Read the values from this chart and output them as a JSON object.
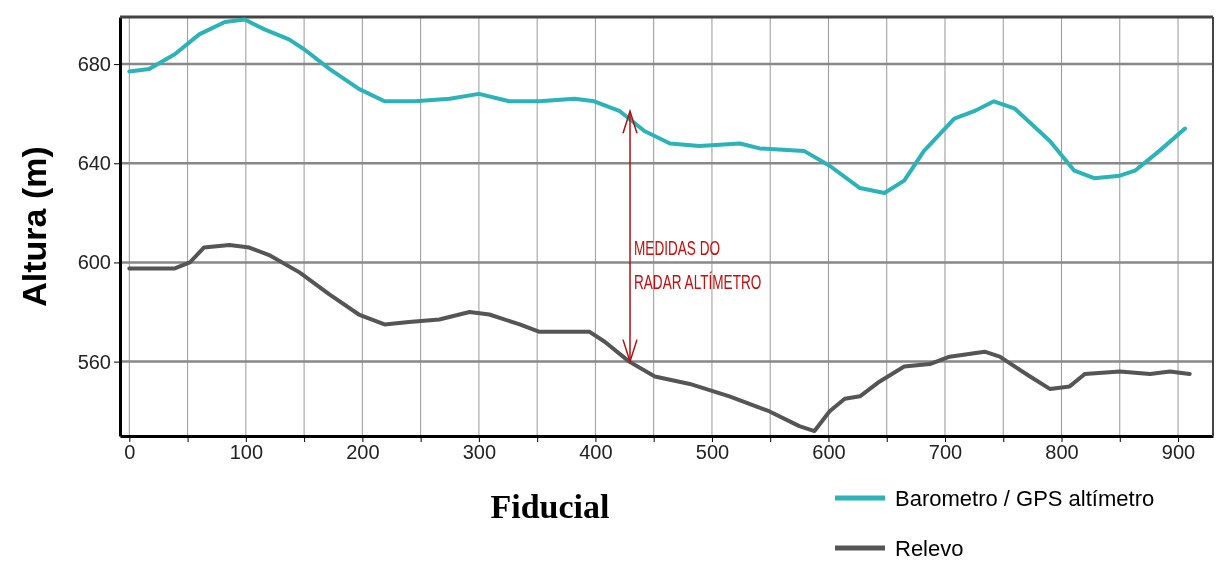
{
  "chart_data": {
    "type": "line",
    "xlabel": "Fiducial",
    "ylabel": "Altura (m)",
    "xlim": [
      -8,
      930
    ],
    "ylim": [
      530,
      699
    ],
    "xticks": [
      0,
      {
        "value": 50,
        "label": null
      },
      100,
      {
        "value": 150,
        "label": null
      },
      200,
      {
        "value": 250,
        "label": null
      },
      300,
      {
        "value": 350,
        "label": null
      },
      400,
      {
        "value": 450,
        "label": null
      },
      500,
      {
        "value": 550,
        "label": null
      },
      600,
      {
        "value": 650,
        "label": null
      },
      700,
      {
        "value": 750,
        "label": null
      },
      800,
      {
        "value": 850,
        "label": null
      },
      900
    ],
    "yticks": [
      560,
      600,
      640,
      680
    ],
    "grid": true,
    "legend": "bottom right",
    "line_style": "solid",
    "annotations": [
      "MEDIDAS DO RADAR ALTÍMETRO"
    ],
    "series": [
      {
        "name": "Barometro / GPS altímetro",
        "color": "#2bb3b8",
        "x": [
          0,
          17,
          39,
          60,
          82,
          99,
          116,
          137,
          150,
          172,
          197,
          219,
          245,
          275,
          300,
          326,
          352,
          382,
          399,
          421,
          442,
          464,
          489,
          524,
          541,
          579,
          601,
          627,
          648,
          665,
          682,
          708,
          725,
          742,
          760,
          790,
          811,
          828,
          850,
          863,
          884,
          906
        ],
        "values": [
          677,
          678,
          684,
          692,
          697,
          698,
          694,
          690,
          686,
          678,
          670,
          665,
          665,
          666,
          668,
          665,
          665,
          666,
          665,
          661,
          653,
          648,
          647,
          648,
          646,
          645,
          639,
          630,
          628,
          633,
          645,
          658,
          661,
          665,
          662,
          649,
          637,
          634,
          635,
          637,
          645,
          654
        ]
      },
      {
        "name": "Relevo",
        "color": "#555555",
        "x": [
          0,
          39,
          52,
          64,
          86,
          103,
          120,
          146,
          172,
          197,
          219,
          240,
          266,
          292,
          309,
          335,
          352,
          395,
          408,
          429,
          451,
          481,
          515,
          549,
          575,
          588,
          601,
          614,
          627,
          644,
          665,
          687,
          704,
          734,
          747,
          773,
          790,
          807,
          820,
          850,
          876,
          893,
          910
        ],
        "values": [
          597.6,
          597.6,
          600,
          606,
          607,
          606,
          603,
          596,
          587,
          579,
          575,
          576,
          577,
          580,
          579,
          575,
          572,
          572,
          568,
          560,
          554,
          551,
          546,
          540,
          534,
          532,
          540,
          545,
          546,
          552,
          558,
          559,
          562,
          564,
          562,
          554,
          549,
          550,
          555,
          556,
          555,
          556,
          555
        ]
      }
    ]
  }
}
